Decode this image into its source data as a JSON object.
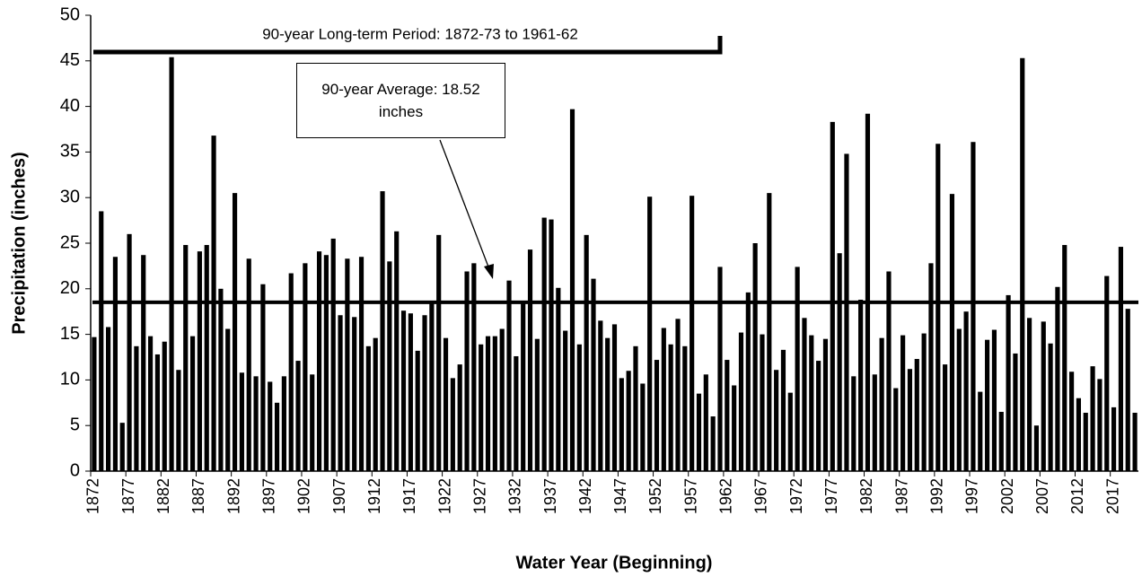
{
  "chart_data": {
    "type": "bar",
    "y_label": "Precipitation (inches)",
    "x_label": "Water Year (Beginning)",
    "categories": [
      "1872",
      null,
      null,
      null,
      null,
      "1877",
      null,
      null,
      null,
      null,
      "1882",
      null,
      null,
      null,
      null,
      "1887",
      null,
      null,
      null,
      null,
      "1892",
      null,
      null,
      null,
      null,
      "1897",
      null,
      null,
      null,
      null,
      "1902",
      null,
      null,
      null,
      null,
      "1907",
      null,
      null,
      null,
      null,
      "1912",
      null,
      null,
      null,
      null,
      "1917",
      null,
      null,
      null,
      null,
      "1922",
      null,
      null,
      null,
      null,
      "1927",
      null,
      null,
      null,
      null,
      "1932",
      null,
      null,
      null,
      null,
      "1937",
      null,
      null,
      null,
      null,
      "1942",
      null,
      null,
      null,
      null,
      "1947",
      null,
      null,
      null,
      null,
      "1952",
      null,
      null,
      null,
      null,
      "1957",
      null,
      null,
      null,
      null,
      "1962",
      null,
      null,
      null,
      null,
      "1967",
      null,
      null,
      null,
      null,
      "1972",
      null,
      null,
      null,
      null,
      "1977",
      null,
      null,
      null,
      null,
      "1982",
      null,
      null,
      null,
      null,
      "1987",
      null,
      null,
      null,
      null,
      "1992",
      null,
      null,
      null,
      null,
      "1997",
      null,
      null,
      null,
      null,
      "2002",
      null,
      null,
      null,
      null,
      "2007",
      null,
      null,
      null,
      null,
      "2012",
      null,
      null,
      null,
      null,
      "2017",
      null,
      null,
      null
    ],
    "values": [
      14.7,
      28.5,
      15.8,
      23.5,
      5.3,
      26.0,
      13.7,
      23.7,
      14.8,
      12.8,
      14.2,
      45.4,
      11.1,
      24.8,
      14.8,
      24.1,
      24.8,
      36.8,
      20.0,
      15.6,
      30.5,
      10.8,
      23.3,
      10.4,
      20.5,
      9.8,
      7.5,
      10.4,
      21.7,
      12.1,
      22.8,
      10.6,
      24.1,
      23.7,
      25.5,
      17.1,
      23.3,
      16.9,
      23.5,
      13.7,
      14.6,
      30.7,
      23.0,
      26.3,
      17.6,
      17.3,
      13.2,
      17.1,
      18.5,
      25.9,
      14.6,
      10.2,
      11.7,
      21.9,
      22.8,
      13.9,
      14.8,
      14.8,
      15.6,
      20.9,
      12.6,
      18.7,
      24.3,
      14.5,
      27.8,
      27.6,
      20.1,
      15.4,
      39.7,
      13.9,
      25.9,
      21.1,
      16.5,
      14.6,
      16.1,
      10.2,
      11.0,
      13.7,
      9.6,
      30.1,
      12.2,
      15.7,
      13.9,
      16.7,
      13.7,
      30.2,
      8.5,
      10.6,
      6.0,
      22.4,
      12.2,
      9.4,
      15.2,
      19.6,
      25.0,
      15.0,
      30.5,
      11.1,
      13.3,
      8.6,
      22.4,
      16.8,
      14.9,
      12.1,
      14.5,
      38.3,
      23.9,
      34.8,
      10.4,
      18.8,
      39.2,
      10.6,
      14.6,
      21.9,
      9.1,
      14.9,
      11.2,
      12.3,
      15.1,
      22.8,
      35.9,
      11.7,
      30.4,
      15.6,
      17.5,
      36.1,
      8.7,
      14.4,
      15.5,
      6.5,
      19.3,
      12.9,
      45.3,
      16.8,
      5.0,
      16.4,
      14.0,
      20.2,
      24.8,
      10.9,
      8.0,
      6.4,
      11.5,
      10.1,
      21.4,
      7.0,
      24.6,
      17.8,
      6.4
    ],
    "color": "#000000",
    "ylim": [
      0,
      50
    ],
    "yticks": [
      0,
      5,
      10,
      15,
      20,
      25,
      30,
      35,
      40,
      45,
      50
    ],
    "grid": false,
    "annotations": {
      "period_label": "90-year Long-term Period: 1872-73 to 1961-62",
      "average_label": "90-year Average: 18.52 inches",
      "average": 18.52
    }
  }
}
